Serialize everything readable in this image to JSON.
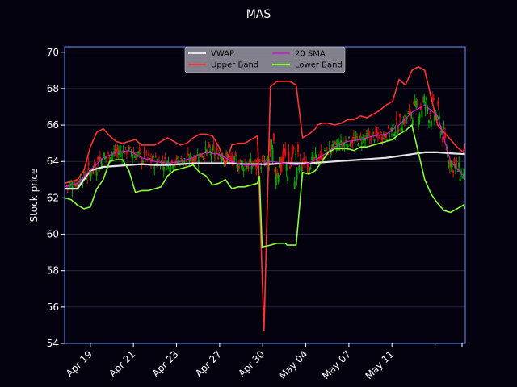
{
  "chart_data": {
    "type": "line",
    "title": "MAS",
    "ylabel": "Stock price",
    "xlabel": "",
    "ylim": [
      54,
      70.3
    ],
    "yticks": [
      54,
      56,
      58,
      60,
      62,
      64,
      66,
      68,
      70
    ],
    "xlim": [
      0,
      62.3
    ],
    "xticks": [
      {
        "x": 4,
        "label": "Apr 19"
      },
      {
        "x": 10.7,
        "label": "Apr 21"
      },
      {
        "x": 17.4,
        "label": "Apr 23"
      },
      {
        "x": 24.1,
        "label": "Apr 27"
      },
      {
        "x": 30.8,
        "label": "Apr 30"
      },
      {
        "x": 37.5,
        "label": "May 04"
      },
      {
        "x": 44.2,
        "label": "May 07"
      },
      {
        "x": 50.9,
        "label": "May 11"
      },
      {
        "x": 57.6,
        "label": ""
      },
      {
        "x": 64.3,
        "label": ""
      }
    ],
    "grid": true,
    "legend": {
      "placement": "top-center",
      "columns": 2
    },
    "colors": {
      "background": "#05020f",
      "axes": "#6b8cff",
      "grid": "#2b2b44",
      "vwap": "#e6e6e6",
      "upper": "#ff3333",
      "sma": "#cc22cc",
      "lower": "#88ff33",
      "candle_up": "#00aa00",
      "candle_down": "#dd1111"
    },
    "series": [
      {
        "name": "VWAP",
        "x": [
          0,
          2,
          4,
          6,
          8,
          10,
          12,
          14,
          16,
          18,
          20,
          22,
          24,
          26,
          28,
          30,
          32,
          34,
          36,
          38,
          40,
          42,
          44,
          46,
          48,
          50,
          52,
          54,
          56,
          58,
          60,
          62.3
        ],
        "values": [
          62.5,
          62.5,
          63.5,
          63.7,
          63.75,
          63.8,
          63.85,
          63.8,
          63.8,
          63.85,
          63.9,
          63.9,
          63.9,
          63.9,
          63.85,
          63.85,
          63.85,
          63.9,
          63.9,
          63.9,
          63.95,
          64.0,
          64.05,
          64.1,
          64.15,
          64.2,
          64.3,
          64.4,
          64.5,
          64.5,
          64.45,
          64.4
        ]
      },
      {
        "name": "Upper Band",
        "x": [
          0,
          2,
          3,
          4,
          5,
          6,
          7,
          8,
          9,
          10,
          11,
          12,
          13,
          14,
          15,
          16,
          17,
          18,
          19,
          20,
          21,
          22,
          23,
          24,
          25,
          26,
          27,
          28,
          29,
          30,
          31,
          32,
          33,
          34,
          34.3,
          34.6,
          35,
          36,
          37,
          38,
          39,
          39.3,
          40,
          41,
          42,
          43,
          44,
          45,
          46,
          47,
          48,
          49,
          50,
          51,
          52,
          53,
          54,
          55,
          56,
          57,
          58,
          59,
          60,
          61,
          62,
          62.3
        ],
        "values": [
          62.8,
          63.0,
          63.5,
          64.8,
          65.6,
          65.8,
          65.4,
          65.1,
          65.0,
          65.1,
          65.2,
          64.9,
          64.9,
          64.9,
          65.1,
          65.3,
          65.1,
          64.9,
          65.0,
          65.3,
          65.5,
          65.5,
          65.4,
          64.8,
          63.8,
          64.9,
          65.0,
          65.0,
          65.2,
          65.4,
          54.7,
          68.1,
          68.4,
          68.4,
          68.4,
          68.4,
          68.4,
          68.2,
          65.3,
          65.5,
          65.8,
          66.0,
          66.1,
          66.1,
          66.0,
          66.1,
          66.3,
          66.3,
          66.5,
          66.4,
          66.6,
          66.8,
          67.1,
          67.3,
          68.5,
          68.2,
          69.0,
          69.2,
          69.0,
          67.5,
          66.0,
          65.6,
          65.2,
          64.8,
          64.5,
          65.0
        ]
      },
      {
        "name": "20 SMA",
        "x": [
          0,
          2,
          4,
          6,
          8,
          10,
          12,
          14,
          16,
          18,
          20,
          22,
          24,
          26,
          28,
          30,
          32,
          34,
          36,
          38,
          40,
          42,
          44,
          46,
          48,
          50,
          52,
          54,
          56,
          58,
          60,
          62.3
        ],
        "values": [
          62.6,
          62.8,
          63.5,
          64.2,
          64.5,
          64.6,
          64.2,
          64.0,
          63.9,
          64.0,
          64.2,
          64.5,
          64.4,
          64.0,
          63.8,
          63.8,
          64.0,
          63.9,
          63.8,
          63.9,
          64.3,
          64.8,
          65.1,
          65.2,
          65.4,
          65.5,
          66.0,
          66.7,
          67.1,
          66.5,
          64.0,
          63.1
        ]
      },
      {
        "name": "Lower Band",
        "x": [
          0,
          1,
          2,
          3,
          4,
          5,
          6,
          7,
          8,
          9,
          10,
          11,
          12,
          13,
          14,
          15,
          16,
          17,
          18,
          19,
          20,
          21,
          22,
          23,
          24,
          25,
          26,
          27,
          28,
          29,
          30,
          30.3,
          30.7,
          32,
          33,
          34,
          34.3,
          34.6,
          35,
          36,
          37,
          38,
          39,
          40,
          41,
          42,
          43,
          44,
          45,
          46,
          47,
          48,
          49,
          50,
          51,
          52,
          53,
          54,
          55,
          56,
          57,
          58,
          59,
          60,
          61,
          62,
          62.3
        ],
        "values": [
          62.0,
          61.9,
          61.6,
          61.4,
          61.5,
          62.5,
          63.0,
          64.0,
          64.1,
          64.1,
          63.5,
          62.3,
          62.4,
          62.4,
          62.5,
          62.6,
          63.2,
          63.5,
          63.6,
          63.7,
          63.8,
          63.4,
          63.2,
          62.7,
          62.8,
          63.0,
          62.5,
          62.6,
          62.6,
          62.7,
          62.8,
          63.2,
          59.3,
          59.4,
          59.5,
          59.5,
          59.5,
          59.4,
          59.4,
          59.4,
          63.4,
          63.3,
          63.5,
          64.0,
          64.5,
          64.7,
          64.7,
          64.7,
          64.6,
          64.8,
          64.8,
          64.9,
          65.0,
          65.1,
          65.2,
          65.5,
          65.7,
          66.0,
          64.5,
          63.0,
          62.2,
          61.7,
          61.3,
          61.2,
          61.4,
          61.6,
          61.4
        ]
      }
    ]
  }
}
